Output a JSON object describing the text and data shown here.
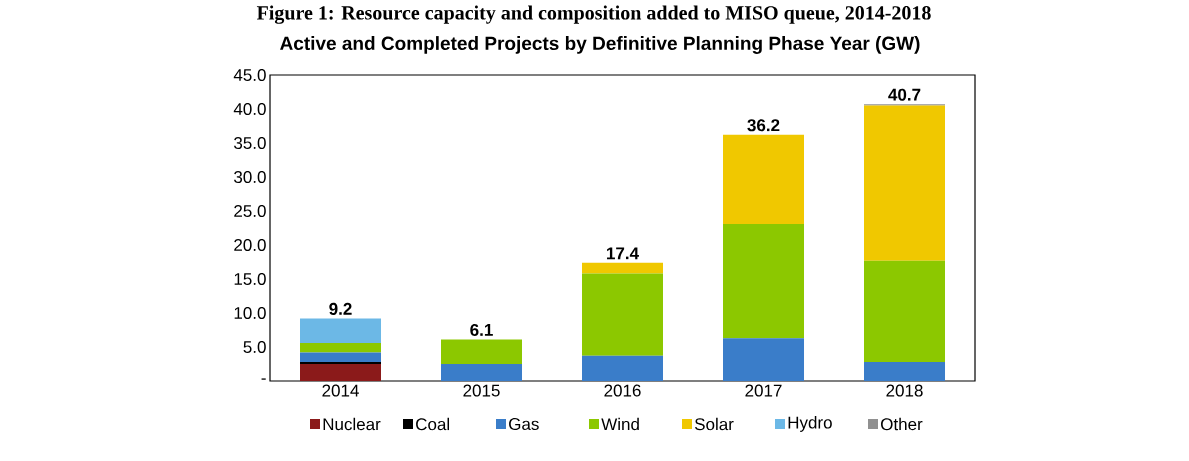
{
  "chart_data": {
    "type": "bar",
    "stacked": true,
    "title": "Active and Completed Projects by Definitive Planning Phase Year (GW)",
    "annotations": [
      "Figure 1: Resource capacity and composition added to MISO queue, 2014-2018"
    ],
    "categories": [
      "2014",
      "2015",
      "2016",
      "2017",
      "2018"
    ],
    "series": [
      {
        "name": "Nuclear",
        "color": "#8b1a1a",
        "values": [
          2.5,
          0,
          0,
          0,
          0
        ]
      },
      {
        "name": "Coal",
        "color": "#000000",
        "values": [
          0.3,
          0,
          0,
          0,
          0
        ]
      },
      {
        "name": "Gas",
        "color": "#3a7dc9",
        "values": [
          1.4,
          2.5,
          3.7,
          6.3,
          2.8
        ]
      },
      {
        "name": "Wind",
        "color": "#8cc800",
        "values": [
          1.4,
          3.6,
          12.1,
          16.8,
          14.9
        ]
      },
      {
        "name": "Solar",
        "color": "#f0c800",
        "values": [
          0,
          0,
          1.6,
          13.1,
          22.8
        ]
      },
      {
        "name": "Hydro",
        "color": "#6cb8e6",
        "values": [
          3.6,
          0,
          0,
          0,
          0
        ]
      },
      {
        "name": "Other",
        "color": "#909090",
        "values": [
          0,
          0,
          0,
          0,
          0.2
        ]
      }
    ],
    "totals": [
      "9.2",
      "6.1",
      "17.4",
      "36.2",
      "40.7"
    ],
    "ylim": [
      0,
      45
    ],
    "yticks": [
      {
        "value": 0,
        "label": "-"
      },
      {
        "value": 5,
        "label": "5.0"
      },
      {
        "value": 10,
        "label": "10.0"
      },
      {
        "value": 15,
        "label": "15.0"
      },
      {
        "value": 20,
        "label": "20.0"
      },
      {
        "value": 25,
        "label": "25.0"
      },
      {
        "value": 30,
        "label": "30.0"
      },
      {
        "value": 35,
        "label": "35.0"
      },
      {
        "value": 40,
        "label": "40.0"
      },
      {
        "value": 45,
        "label": "45.0"
      }
    ],
    "grid": false,
    "legend": "bottom"
  }
}
